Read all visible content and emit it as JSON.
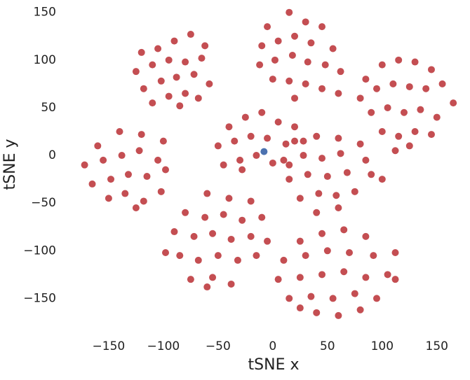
{
  "chart_data": {
    "type": "scatter",
    "xlabel": "tSNE x",
    "ylabel": "tSNE y",
    "xlim": [
      -182,
      179
    ],
    "ylim": [
      -182,
      163
    ],
    "xticks": [
      {
        "value": -150,
        "label": "−150"
      },
      {
        "value": -100,
        "label": "−100"
      },
      {
        "value": -50,
        "label": "−50"
      },
      0,
      50,
      100,
      150
    ],
    "yticks": [
      {
        "value": -150,
        "label": "−150"
      },
      {
        "value": -100,
        "label": "−100"
      },
      {
        "value": -50,
        "label": "−50"
      },
      0,
      50,
      100,
      150
    ],
    "grid": false,
    "series": [
      {
        "color": "#c44e52",
        "x": [
          -120,
          -105,
          -90,
          -75,
          -62,
          -125,
          -110,
          -95,
          -80,
          -65,
          -118,
          -102,
          -88,
          -72,
          -58,
          -110,
          -95,
          -80,
          -68,
          -85,
          -5,
          15,
          30,
          45,
          -10,
          5,
          20,
          35,
          55,
          -12,
          2,
          18,
          32,
          48,
          62,
          0,
          15,
          30,
          45,
          60,
          20,
          85,
          100,
          115,
          130,
          145,
          80,
          95,
          110,
          125,
          140,
          155,
          165,
          90,
          105,
          120,
          135,
          150,
          100,
          115,
          130,
          145,
          112,
          125,
          -160,
          -140,
          -120,
          -100,
          -172,
          -155,
          -138,
          -122,
          -105,
          -165,
          -148,
          -132,
          -115,
          -98,
          -150,
          -135,
          -118,
          -102,
          -125,
          -40,
          -25,
          -10,
          5,
          20,
          -50,
          -35,
          -20,
          -5,
          12,
          28,
          -45,
          -30,
          -15,
          0,
          15,
          -28,
          20,
          40,
          60,
          80,
          10,
          28,
          45,
          62,
          85,
          15,
          32,
          50,
          68,
          90,
          25,
          42,
          58,
          75,
          40,
          60,
          100,
          -60,
          -40,
          -20,
          -80,
          -62,
          -45,
          -28,
          -10,
          -90,
          -72,
          -55,
          -38,
          -20,
          -5,
          -85,
          -68,
          -50,
          -32,
          -15,
          -75,
          -55,
          -38,
          -60,
          -98,
          25,
          45,
          65,
          85,
          10,
          30,
          50,
          70,
          92,
          112,
          5,
          25,
          45,
          65,
          85,
          105,
          112,
          15,
          35,
          55,
          75,
          95,
          40,
          60,
          25,
          80
        ],
        "y": [
          108,
          112,
          120,
          127,
          115,
          88,
          95,
          100,
          98,
          102,
          70,
          78,
          82,
          85,
          75,
          55,
          62,
          65,
          60,
          52,
          135,
          150,
          140,
          135,
          115,
          120,
          125,
          118,
          112,
          95,
          100,
          105,
          98,
          95,
          88,
          80,
          78,
          75,
          70,
          65,
          60,
          80,
          95,
          100,
          98,
          90,
          60,
          70,
          75,
          72,
          70,
          75,
          55,
          45,
          50,
          45,
          48,
          40,
          25,
          20,
          25,
          22,
          5,
          10,
          10,
          25,
          22,
          15,
          -10,
          -5,
          0,
          5,
          -5,
          -30,
          -25,
          -20,
          -22,
          -15,
          -45,
          -40,
          -48,
          -38,
          -55,
          30,
          40,
          45,
          35,
          30,
          10,
          15,
          20,
          18,
          12,
          15,
          -10,
          -5,
          0,
          -8,
          -10,
          -15,
          15,
          20,
          18,
          12,
          -5,
          0,
          -3,
          2,
          -5,
          -25,
          -20,
          -22,
          -18,
          -20,
          -45,
          -40,
          -42,
          -38,
          -60,
          -55,
          -25,
          -40,
          -45,
          -48,
          -60,
          -65,
          -62,
          -68,
          -65,
          -80,
          -85,
          -82,
          -88,
          -85,
          -90,
          -105,
          -110,
          -105,
          -110,
          -105,
          -130,
          -128,
          -135,
          -138,
          -102,
          -90,
          -82,
          -78,
          -85,
          -110,
          -105,
          -100,
          -102,
          -105,
          -102,
          -130,
          -128,
          -125,
          -122,
          -128,
          -125,
          -130,
          -150,
          -148,
          -150,
          -145,
          -150,
          -165,
          -168,
          -160,
          -162
        ]
      },
      {
        "color": "#4c72b0",
        "x": [
          -8
        ],
        "y": [
          4
        ]
      }
    ]
  }
}
